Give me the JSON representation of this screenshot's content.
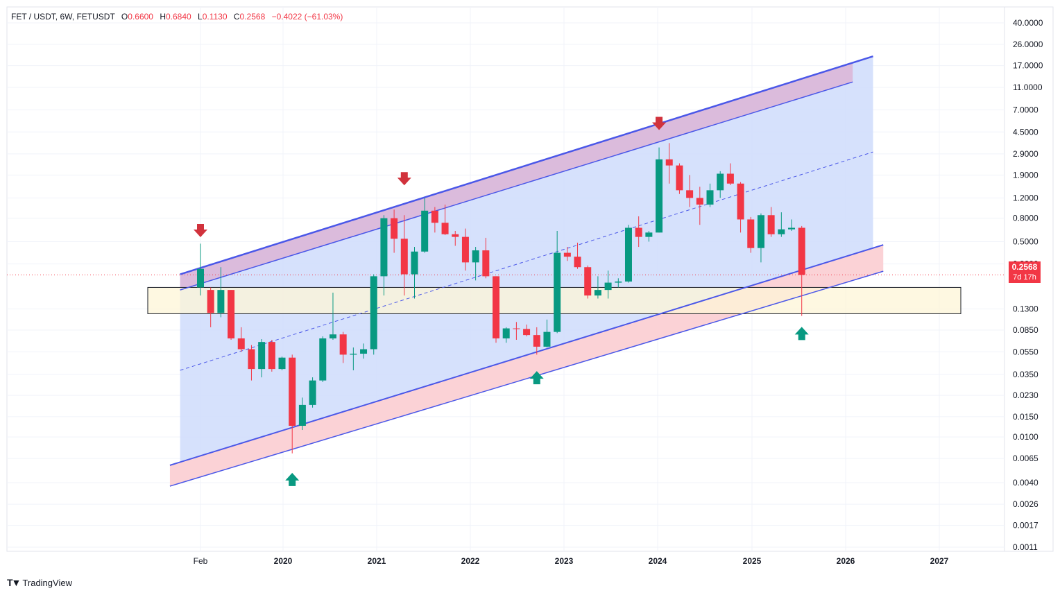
{
  "header": {
    "symbol": "FET / USDT, 6W, FETUSDT",
    "o_label": "O",
    "o_value": "0.6600",
    "h_label": "H",
    "h_value": "0.6840",
    "l_label": "L",
    "l_value": "0.1130",
    "c_label": "C",
    "c_value": "0.2568",
    "change": "−0.4022 (−61.03%)"
  },
  "last_price": {
    "value": "0.2568",
    "timer": "7d 17h"
  },
  "brand": {
    "name": "TradingView"
  },
  "colors": {
    "up": "#089981",
    "down": "#f23645",
    "channel_line": "#4a57e8",
    "channel_fill": "#cfdcfc",
    "band_top": "#dcb7d8",
    "band_bottom": "#fbd0d4",
    "zone_fill": "#fdf6d7",
    "arrow_down": "#d1323c",
    "arrow_up": "#089981"
  },
  "chart_data": {
    "type": "candlestick",
    "y_scale": "log",
    "y_ticks": [
      "40.0000",
      "26.0000",
      "17.0000",
      "11.0000",
      "7.0000",
      "4.5000",
      "2.9000",
      "1.9000",
      "1.2000",
      "0.8000",
      "0.5000",
      "0.3200",
      "0.1300",
      "0.0850",
      "0.0550",
      "0.0350",
      "0.0230",
      "0.0150",
      "0.0100",
      "0.0065",
      "0.0040",
      "0.0026",
      "0.0017",
      "0.0011"
    ],
    "x_ticks": [
      "Feb",
      "2020",
      "2021",
      "2022",
      "2023",
      "2024",
      "2025",
      "2026",
      "2027"
    ],
    "candles": [
      {
        "i": 0,
        "o": 0.2,
        "h": 0.48,
        "l": 0.17,
        "c": 0.29
      },
      {
        "i": 1,
        "o": 0.19,
        "h": 0.2,
        "l": 0.09,
        "c": 0.12
      },
      {
        "i": 2,
        "o": 0.12,
        "h": 0.3,
        "l": 0.11,
        "c": 0.19
      },
      {
        "i": 3,
        "o": 0.19,
        "h": 0.19,
        "l": 0.07,
        "c": 0.072
      },
      {
        "i": 4,
        "o": 0.072,
        "h": 0.09,
        "l": 0.055,
        "c": 0.058
      },
      {
        "i": 5,
        "o": 0.058,
        "h": 0.063,
        "l": 0.031,
        "c": 0.039
      },
      {
        "i": 6,
        "o": 0.039,
        "h": 0.071,
        "l": 0.033,
        "c": 0.067
      },
      {
        "i": 7,
        "o": 0.067,
        "h": 0.07,
        "l": 0.037,
        "c": 0.039
      },
      {
        "i": 8,
        "o": 0.039,
        "h": 0.05,
        "l": 0.038,
        "c": 0.049
      },
      {
        "i": 9,
        "o": 0.049,
        "h": 0.052,
        "l": 0.0072,
        "c": 0.0125
      },
      {
        "i": 10,
        "o": 0.0125,
        "h": 0.022,
        "l": 0.0115,
        "c": 0.019
      },
      {
        "i": 11,
        "o": 0.019,
        "h": 0.033,
        "l": 0.018,
        "c": 0.031
      },
      {
        "i": 12,
        "o": 0.031,
        "h": 0.075,
        "l": 0.03,
        "c": 0.072
      },
      {
        "i": 13,
        "o": 0.072,
        "h": 0.18,
        "l": 0.07,
        "c": 0.078
      },
      {
        "i": 14,
        "o": 0.078,
        "h": 0.082,
        "l": 0.044,
        "c": 0.052
      },
      {
        "i": 15,
        "o": 0.052,
        "h": 0.06,
        "l": 0.038,
        "c": 0.053
      },
      {
        "i": 16,
        "o": 0.053,
        "h": 0.065,
        "l": 0.048,
        "c": 0.058
      },
      {
        "i": 17,
        "o": 0.058,
        "h": 0.26,
        "l": 0.052,
        "c": 0.25
      },
      {
        "i": 18,
        "o": 0.25,
        "h": 0.85,
        "l": 0.17,
        "c": 0.8
      },
      {
        "i": 19,
        "o": 0.8,
        "h": 0.95,
        "l": 0.4,
        "c": 0.53
      },
      {
        "i": 20,
        "o": 0.53,
        "h": 0.85,
        "l": 0.17,
        "c": 0.26
      },
      {
        "i": 21,
        "o": 0.26,
        "h": 0.45,
        "l": 0.16,
        "c": 0.41
      },
      {
        "i": 22,
        "o": 0.41,
        "h": 1.2,
        "l": 0.4,
        "c": 0.93
      },
      {
        "i": 23,
        "o": 0.93,
        "h": 1.0,
        "l": 0.6,
        "c": 0.73
      },
      {
        "i": 24,
        "o": 0.73,
        "h": 1.05,
        "l": 0.57,
        "c": 0.58
      },
      {
        "i": 25,
        "o": 0.58,
        "h": 0.62,
        "l": 0.46,
        "c": 0.55
      },
      {
        "i": 26,
        "o": 0.55,
        "h": 0.65,
        "l": 0.28,
        "c": 0.33
      },
      {
        "i": 27,
        "o": 0.33,
        "h": 0.45,
        "l": 0.23,
        "c": 0.42
      },
      {
        "i": 28,
        "o": 0.42,
        "h": 0.54,
        "l": 0.24,
        "c": 0.25
      },
      {
        "i": 29,
        "o": 0.25,
        "h": 0.25,
        "l": 0.066,
        "c": 0.072
      },
      {
        "i": 30,
        "o": 0.072,
        "h": 0.09,
        "l": 0.066,
        "c": 0.088
      },
      {
        "i": 31,
        "o": 0.088,
        "h": 0.1,
        "l": 0.07,
        "c": 0.087
      },
      {
        "i": 32,
        "o": 0.087,
        "h": 0.095,
        "l": 0.075,
        "c": 0.077
      },
      {
        "i": 33,
        "o": 0.077,
        "h": 0.09,
        "l": 0.052,
        "c": 0.061
      },
      {
        "i": 34,
        "o": 0.061,
        "h": 0.105,
        "l": 0.06,
        "c": 0.082
      },
      {
        "i": 35,
        "o": 0.082,
        "h": 0.62,
        "l": 0.08,
        "c": 0.4
      },
      {
        "i": 36,
        "o": 0.4,
        "h": 0.45,
        "l": 0.34,
        "c": 0.37
      },
      {
        "i": 37,
        "o": 0.37,
        "h": 0.49,
        "l": 0.29,
        "c": 0.3
      },
      {
        "i": 38,
        "o": 0.3,
        "h": 0.31,
        "l": 0.16,
        "c": 0.17
      },
      {
        "i": 39,
        "o": 0.17,
        "h": 0.25,
        "l": 0.16,
        "c": 0.19
      },
      {
        "i": 40,
        "o": 0.19,
        "h": 0.28,
        "l": 0.16,
        "c": 0.22
      },
      {
        "i": 41,
        "o": 0.22,
        "h": 0.24,
        "l": 0.2,
        "c": 0.225
      },
      {
        "i": 42,
        "o": 0.225,
        "h": 0.7,
        "l": 0.22,
        "c": 0.66
      },
      {
        "i": 43,
        "o": 0.66,
        "h": 0.83,
        "l": 0.45,
        "c": 0.55
      },
      {
        "i": 44,
        "o": 0.55,
        "h": 0.62,
        "l": 0.5,
        "c": 0.6
      },
      {
        "i": 45,
        "o": 0.6,
        "h": 3.3,
        "l": 0.6,
        "c": 2.6
      },
      {
        "i": 46,
        "o": 2.6,
        "h": 3.6,
        "l": 1.6,
        "c": 2.3
      },
      {
        "i": 47,
        "o": 2.3,
        "h": 2.4,
        "l": 1.3,
        "c": 1.4
      },
      {
        "i": 48,
        "o": 1.4,
        "h": 1.9,
        "l": 1.0,
        "c": 1.2
      },
      {
        "i": 49,
        "o": 1.2,
        "h": 1.5,
        "l": 0.7,
        "c": 1.05
      },
      {
        "i": 50,
        "o": 1.05,
        "h": 1.6,
        "l": 1.0,
        "c": 1.4
      },
      {
        "i": 51,
        "o": 1.4,
        "h": 2.05,
        "l": 1.2,
        "c": 1.95
      },
      {
        "i": 52,
        "o": 1.95,
        "h": 2.4,
        "l": 1.55,
        "c": 1.6
      },
      {
        "i": 53,
        "o": 1.6,
        "h": 1.65,
        "l": 0.6,
        "c": 0.78
      },
      {
        "i": 54,
        "o": 0.78,
        "h": 0.82,
        "l": 0.4,
        "c": 0.44
      },
      {
        "i": 55,
        "o": 0.44,
        "h": 0.88,
        "l": 0.33,
        "c": 0.85
      },
      {
        "i": 56,
        "o": 0.85,
        "h": 1.0,
        "l": 0.55,
        "c": 0.58
      },
      {
        "i": 57,
        "o": 0.58,
        "h": 0.9,
        "l": 0.55,
        "c": 0.64
      },
      {
        "i": 58,
        "o": 0.64,
        "h": 0.78,
        "l": 0.62,
        "c": 0.66
      },
      {
        "i": 59,
        "o": 0.66,
        "h": 0.684,
        "l": 0.113,
        "c": 0.2568
      }
    ],
    "zone": {
      "low": 0.118,
      "high": 0.2
    },
    "channel": {
      "upper_outer": [
        {
          "i": -2,
          "p": 0.26
        },
        {
          "i": 64,
          "p": 18.0
        }
      ],
      "upper_inner": [
        {
          "i": -2,
          "p": 0.19
        },
        {
          "i": 62,
          "p": 10.8
        }
      ],
      "mid": [
        {
          "i": -2,
          "p": 0.038
        },
        {
          "i": 64,
          "p": 2.65
        }
      ],
      "lower_inner": [
        {
          "i": -5,
          "p": 0.005
        },
        {
          "i": 66,
          "p": 0.44
        }
      ],
      "lower_outer": [
        {
          "i": -5,
          "p": 0.0033
        },
        {
          "i": 66,
          "p": 0.26
        }
      ]
    },
    "markers": [
      {
        "type": "down",
        "i": 0,
        "p": 0.62
      },
      {
        "type": "down",
        "i": 20,
        "p": 1.75
      },
      {
        "type": "down",
        "i": 45,
        "p": 5.3
      },
      {
        "type": "up",
        "i": 9,
        "p": 0.0043
      },
      {
        "type": "up",
        "i": 33,
        "p": 0.033
      },
      {
        "type": "up",
        "i": 59,
        "p": 0.08
      }
    ]
  }
}
